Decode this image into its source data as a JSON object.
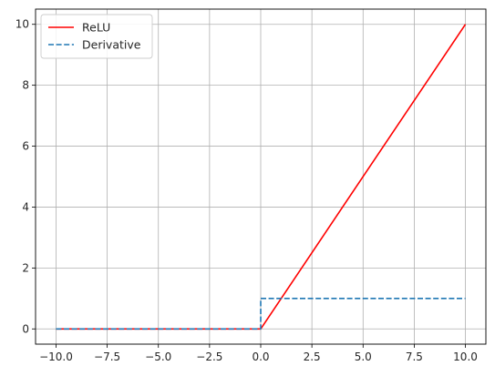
{
  "chart_data": {
    "type": "line",
    "title": "",
    "xlabel": "",
    "ylabel": "",
    "xlim": [
      -11,
      11
    ],
    "ylim": [
      -0.5,
      10.5
    ],
    "x_ticks": [
      -10,
      -7.5,
      -5,
      -2.5,
      0,
      2.5,
      5,
      7.5,
      10
    ],
    "x_tick_labels": [
      "−10.0",
      "−7.5",
      "−5.0",
      "−2.5",
      "0.0",
      "2.5",
      "5.0",
      "7.5",
      "10.0"
    ],
    "y_ticks": [
      0,
      2,
      4,
      6,
      8,
      10
    ],
    "y_tick_labels": [
      "0",
      "2",
      "4",
      "6",
      "8",
      "10"
    ],
    "grid": true,
    "legend_position": "top-left",
    "series": [
      {
        "name": "ReLU",
        "color": "#ff0000",
        "style": "solid",
        "x": [
          -10,
          0,
          10
        ],
        "y": [
          0,
          0,
          10
        ]
      },
      {
        "name": "Derivative",
        "color": "#1f77b4",
        "style": "dashed",
        "x": [
          -10,
          0,
          0,
          10
        ],
        "y": [
          0,
          0,
          1,
          1
        ]
      }
    ]
  }
}
